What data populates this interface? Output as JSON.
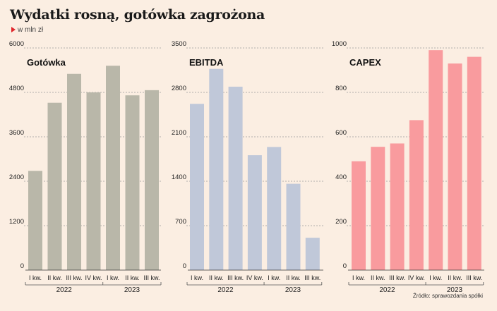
{
  "title": "Wydatki rosną, gotówka zagrożona",
  "subtitle": "w mln zł",
  "source": "Źródło: sprawozdania spółki",
  "chart_data": [
    {
      "type": "bar",
      "title": "Gotówka",
      "color": "#b9b7a9",
      "categories": [
        "I kw.",
        "II kw.",
        "III kw.",
        "IV kw.",
        "I kw.",
        "II kw.",
        "III kw."
      ],
      "years": [
        {
          "label": "2022",
          "span": 4
        },
        {
          "label": "2023",
          "span": 3
        }
      ],
      "values": [
        2680,
        4520,
        5300,
        4800,
        5520,
        4720,
        4860
      ],
      "yticks": [
        0,
        1200,
        2400,
        3600,
        4800,
        6000
      ],
      "ylim": [
        0,
        6000
      ]
    },
    {
      "type": "bar",
      "title": "EBITDA",
      "color": "#c0c8d9",
      "categories": [
        "I kw.",
        "II kw.",
        "III kw.",
        "IV kw.",
        "I kw.",
        "II kw.",
        "III kw."
      ],
      "years": [
        {
          "label": "2022",
          "span": 4
        },
        {
          "label": "2023",
          "span": 3
        }
      ],
      "values": [
        2620,
        3170,
        2890,
        1810,
        1940,
        1360,
        510
      ],
      "yticks": [
        0,
        700,
        1400,
        2100,
        2800,
        3500
      ],
      "ylim": [
        0,
        3500
      ]
    },
    {
      "type": "bar",
      "title": "CAPEX",
      "color": "#f99b9e",
      "categories": [
        "I kw.",
        "II kw.",
        "III kw.",
        "IV kw.",
        "I kw.",
        "II kw.",
        "III kw."
      ],
      "years": [
        {
          "label": "2022",
          "span": 4
        },
        {
          "label": "2023",
          "span": 3
        }
      ],
      "values": [
        490,
        555,
        570,
        675,
        990,
        930,
        960
      ],
      "yticks": [
        0,
        200,
        400,
        600,
        800,
        1000
      ],
      "ylim": [
        0,
        1000
      ]
    }
  ]
}
